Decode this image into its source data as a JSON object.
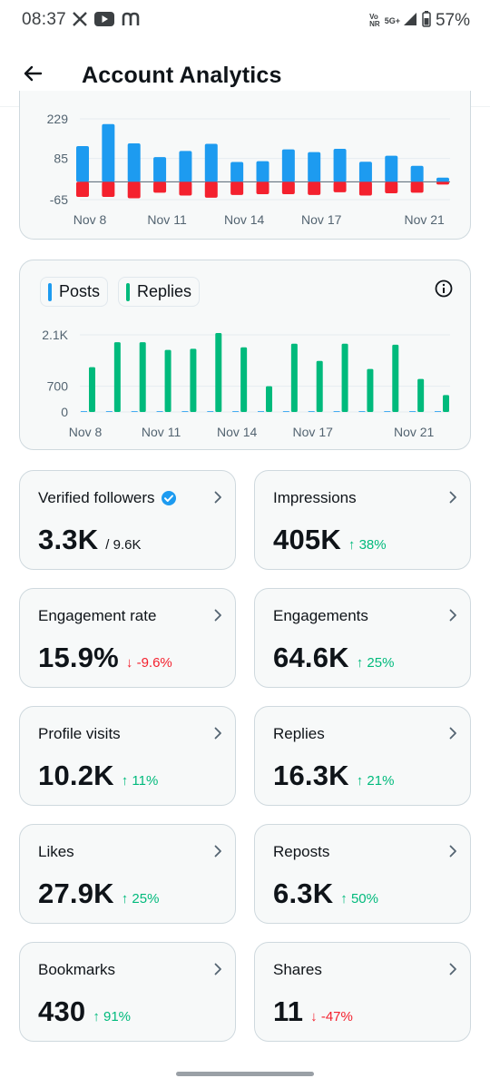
{
  "status_bar": {
    "time": "08:37",
    "app_icons": [
      "x-logo-icon",
      "youtube-icon",
      "mastodon-icon"
    ],
    "network_volte_line1": "Vo",
    "network_volte_line2": "NR",
    "network_type": "5G+",
    "battery_percent": "57%"
  },
  "header": {
    "title": "Account Analytics",
    "back_icon": "back-arrow-icon"
  },
  "colors": {
    "posts_blue": "#1d9bf0",
    "replies_green": "#00ba7c",
    "negative_red": "#f4212e",
    "up_green": "#00ba7c",
    "down_red": "#f4212e",
    "verified_blue": "#1d9bf0"
  },
  "chart_data": [
    {
      "type": "bar",
      "ylim": [
        -65,
        229
      ],
      "y_ticks": [
        "229",
        "85",
        "-65"
      ],
      "x_tick_labels": [
        "Nov 8",
        "Nov 11",
        "Nov 14",
        "Nov 17",
        "Nov 21"
      ],
      "x_tick_index": [
        0,
        3,
        6,
        9,
        13
      ],
      "series": [
        {
          "values": [
            130,
            210,
            140,
            90,
            112,
            138,
            72,
            75,
            118,
            108,
            120,
            73,
            95,
            58,
            15
          ]
        },
        {
          "values": [
            -55,
            -55,
            -60,
            -40,
            -50,
            -58,
            -48,
            -45,
            -45,
            -48,
            -38,
            -50,
            -42,
            -40,
            -10
          ]
        }
      ],
      "grid": true
    },
    {
      "type": "bar",
      "legend": [
        "Posts",
        "Replies"
      ],
      "ylim": [
        0,
        2100
      ],
      "y_ticks": [
        "2.1K",
        "700",
        "0"
      ],
      "x_tick_labels": [
        "Nov 8",
        "Nov 11",
        "Nov 14",
        "Nov 17",
        "Nov 21"
      ],
      "x_tick_index": [
        0,
        3,
        6,
        9,
        13
      ],
      "series": [
        {
          "name": "Posts",
          "values": [
            20,
            20,
            20,
            20,
            20,
            20,
            20,
            20,
            20,
            20,
            20,
            20,
            20,
            20,
            20
          ]
        },
        {
          "name": "Replies",
          "values": [
            1220,
            1900,
            1900,
            1690,
            1720,
            2150,
            1760,
            700,
            1860,
            1390,
            1860,
            1170,
            1830,
            900,
            460
          ]
        }
      ],
      "legend_placement": "top-left",
      "grid": true
    }
  ],
  "metrics": [
    {
      "title": "Verified followers",
      "value": "3.3K",
      "total": "/ 9.6K",
      "change": "",
      "direction": "",
      "verified": true
    },
    {
      "title": "Impressions",
      "value": "405K",
      "total": "",
      "change": "↑ 38%",
      "direction": "up"
    },
    {
      "title": "Engagement rate",
      "value": "15.9%",
      "total": "",
      "change": "↓ -9.6%",
      "direction": "down"
    },
    {
      "title": "Engagements",
      "value": "64.6K",
      "total": "",
      "change": "↑ 25%",
      "direction": "up"
    },
    {
      "title": "Profile visits",
      "value": "10.2K",
      "total": "",
      "change": "↑ 11%",
      "direction": "up"
    },
    {
      "title": "Replies",
      "value": "16.3K",
      "total": "",
      "change": "↑ 21%",
      "direction": "up"
    },
    {
      "title": "Likes",
      "value": "27.9K",
      "total": "",
      "change": "↑ 25%",
      "direction": "up"
    },
    {
      "title": "Reposts",
      "value": "6.3K",
      "total": "",
      "change": "↑ 50%",
      "direction": "up"
    },
    {
      "title": "Bookmarks",
      "value": "430",
      "total": "",
      "change": "↑ 91%",
      "direction": "up"
    },
    {
      "title": "Shares",
      "value": "11",
      "total": "",
      "change": "↓ -47%",
      "direction": "down"
    }
  ]
}
